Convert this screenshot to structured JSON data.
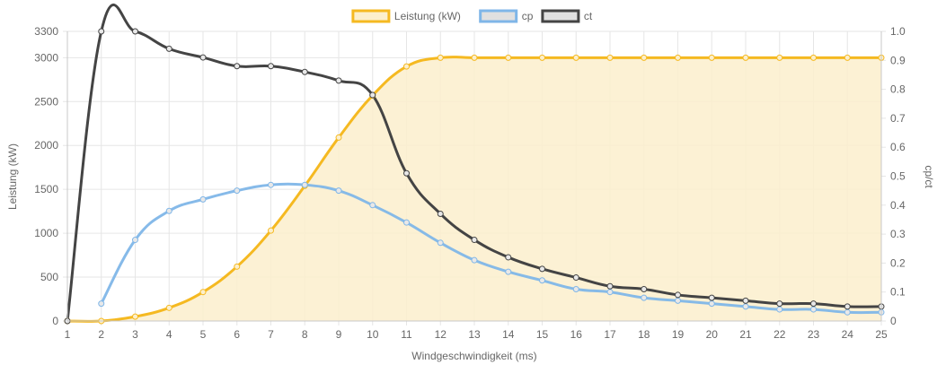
{
  "chart_data": {
    "type": "line",
    "x": [
      1,
      2,
      3,
      4,
      5,
      6,
      7,
      8,
      9,
      10,
      11,
      12,
      13,
      14,
      15,
      16,
      17,
      18,
      19,
      20,
      21,
      22,
      23,
      24,
      25
    ],
    "xlabel": "Windgeschwindigkeit (ms)",
    "ylabel": "Leistung (kW)",
    "y2label": "cp/ct",
    "ylim": [
      0,
      3300
    ],
    "y2lim": [
      0,
      1.0
    ],
    "yticks": [
      0,
      500,
      1000,
      1500,
      2000,
      2500,
      3000,
      3300
    ],
    "y2ticks": [
      0,
      0.1,
      0.2,
      0.3,
      0.4,
      0.5,
      0.6,
      0.7,
      0.8,
      0.9,
      1.0
    ],
    "grid": true,
    "legend_position": "top",
    "series": [
      {
        "name": "Leistung (kW)",
        "axis": "left",
        "color": "#f5b921",
        "fill": "#fcefcc",
        "values": [
          0,
          0,
          50,
          150,
          330,
          620,
          1030,
          1540,
          2090,
          2570,
          2900,
          3000,
          3000,
          3000,
          3000,
          3000,
          3000,
          3000,
          3000,
          3000,
          3000,
          3000,
          3000,
          3000,
          3000
        ]
      },
      {
        "name": "cp",
        "axis": "right",
        "color": "#7fb6e8",
        "values": [
          null,
          0.06,
          0.28,
          0.38,
          0.42,
          0.45,
          0.47,
          0.47,
          0.45,
          0.4,
          0.34,
          0.27,
          0.21,
          0.17,
          0.14,
          0.11,
          0.1,
          0.08,
          0.07,
          0.06,
          0.05,
          0.04,
          0.04,
          0.03,
          0.03
        ]
      },
      {
        "name": "ct",
        "axis": "right",
        "color": "#444444",
        "values": [
          0,
          1.0,
          1.0,
          0.94,
          0.91,
          0.88,
          0.88,
          0.86,
          0.83,
          0.78,
          0.51,
          0.37,
          0.28,
          0.22,
          0.18,
          0.15,
          0.12,
          0.11,
          0.09,
          0.08,
          0.07,
          0.06,
          0.06,
          0.05,
          0.05
        ]
      }
    ]
  }
}
